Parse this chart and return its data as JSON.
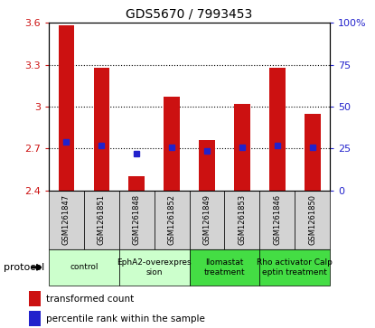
{
  "title": "GDS5670 / 7993453",
  "samples": [
    "GSM1261847",
    "GSM1261851",
    "GSM1261848",
    "GSM1261852",
    "GSM1261849",
    "GSM1261853",
    "GSM1261846",
    "GSM1261850"
  ],
  "bar_values": [
    3.58,
    3.28,
    2.5,
    3.07,
    2.76,
    3.02,
    3.28,
    2.95
  ],
  "bar_base": 2.4,
  "percentile_values": [
    2.75,
    2.72,
    2.66,
    2.71,
    2.68,
    2.71,
    2.72,
    2.71
  ],
  "ylim_left": [
    2.4,
    3.6
  ],
  "ylim_right": [
    0,
    100
  ],
  "yticks_left": [
    2.4,
    2.7,
    3.0,
    3.3,
    3.6
  ],
  "yticks_right": [
    0,
    25,
    50,
    75,
    100
  ],
  "ytick_labels_left": [
    "2.4",
    "2.7",
    "3",
    "3.3",
    "3.6"
  ],
  "ytick_labels_right": [
    "0",
    "25",
    "50",
    "75",
    "100%"
  ],
  "bar_color": "#cc1111",
  "percentile_color": "#2222cc",
  "protocols": [
    {
      "label": "control",
      "samples": [
        0,
        1
      ],
      "color": "#ccffcc"
    },
    {
      "label": "EphA2-overexpres\nsion",
      "samples": [
        2,
        3
      ],
      "color": "#ccffcc"
    },
    {
      "label": "Ilomastat\ntreatment",
      "samples": [
        4,
        5
      ],
      "color": "#44dd44"
    },
    {
      "label": "Rho activator Calp\neptin treatment",
      "samples": [
        6,
        7
      ],
      "color": "#44dd44"
    }
  ],
  "protocol_label": "protocol",
  "legend_bar_label": "transformed count",
  "legend_pct_label": "percentile rank within the sample",
  "grid_yticks": [
    2.7,
    3.0,
    3.3
  ],
  "sample_label_color": "#d3d3d3",
  "sample_label_fontsize": 6.0,
  "bar_width": 0.45
}
